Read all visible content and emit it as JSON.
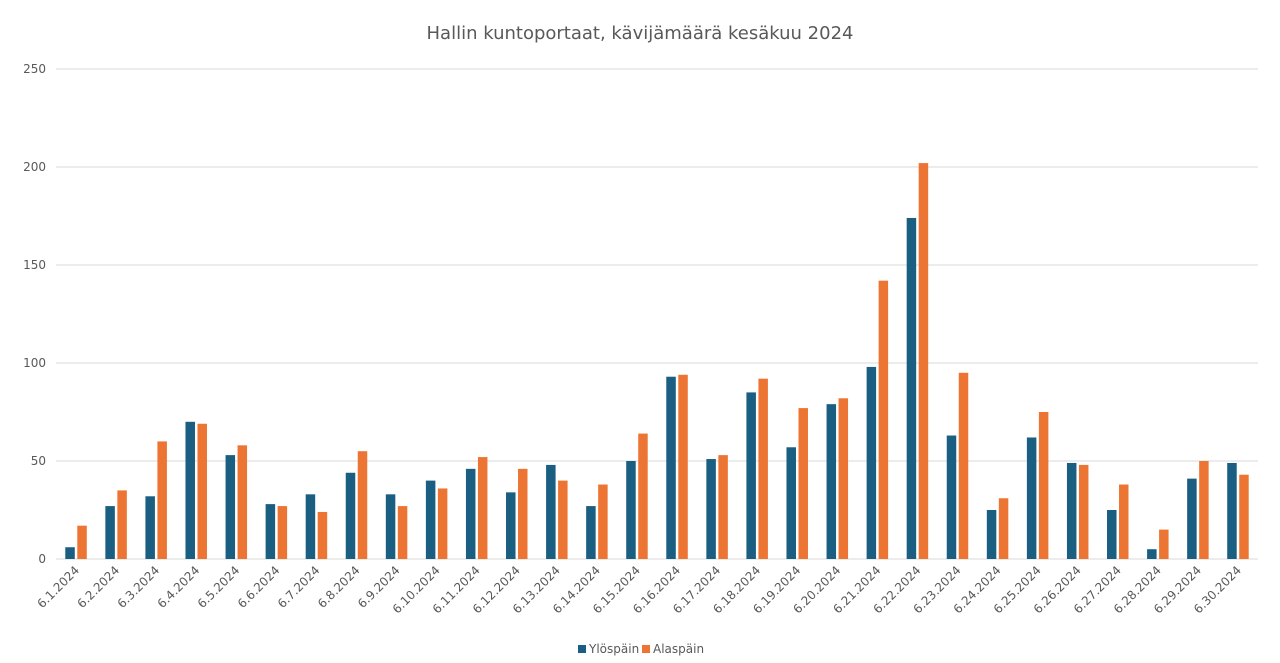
{
  "chart_data": {
    "type": "bar",
    "title": "Hallin kuntoportaat, kävijämäärä kesäkuu 2024",
    "xlabel": "",
    "ylabel": "",
    "ylim": [
      0,
      250
    ],
    "yticks": [
      "0",
      "50",
      "100",
      "150",
      "200",
      "250"
    ],
    "grid": true,
    "legend_position": "bottom",
    "categories": [
      "6.1.2024",
      "6.2.2024",
      "6.3.2024",
      "6.4.2024",
      "6.5.2024",
      "6.6.2024",
      "6.7.2024",
      "6.8.2024",
      "6.9.2024",
      "6.10.2024",
      "6.11.2024",
      "6.12.2024",
      "6.13.2024",
      "6.14.2024",
      "6.15.2024",
      "6.16.2024",
      "6.17.2024",
      "6.18.2024",
      "6.19.2024",
      "6.20.2024",
      "6.21.2024",
      "6.22.2024",
      "6.23.2024",
      "6.24.2024",
      "6.25.2024",
      "6.26.2024",
      "6.27.2024",
      "6.28.2024",
      "6.29.2024",
      "6.30.2024"
    ],
    "series": [
      {
        "name": "Ylöspäin",
        "color": "#1a5e82",
        "values": [
          6,
          27,
          32,
          70,
          53,
          28,
          33,
          44,
          33,
          40,
          46,
          34,
          48,
          27,
          50,
          93,
          51,
          85,
          57,
          79,
          98,
          174,
          63,
          25,
          62,
          49,
          25,
          5,
          41,
          49
        ]
      },
      {
        "name": "Alaspäin",
        "color": "#ed7533",
        "values": [
          17,
          35,
          60,
          69,
          58,
          27,
          24,
          55,
          27,
          36,
          52,
          46,
          40,
          38,
          64,
          94,
          53,
          92,
          77,
          82,
          142,
          202,
          95,
          31,
          75,
          48,
          38,
          15,
          50,
          43
        ]
      }
    ]
  }
}
